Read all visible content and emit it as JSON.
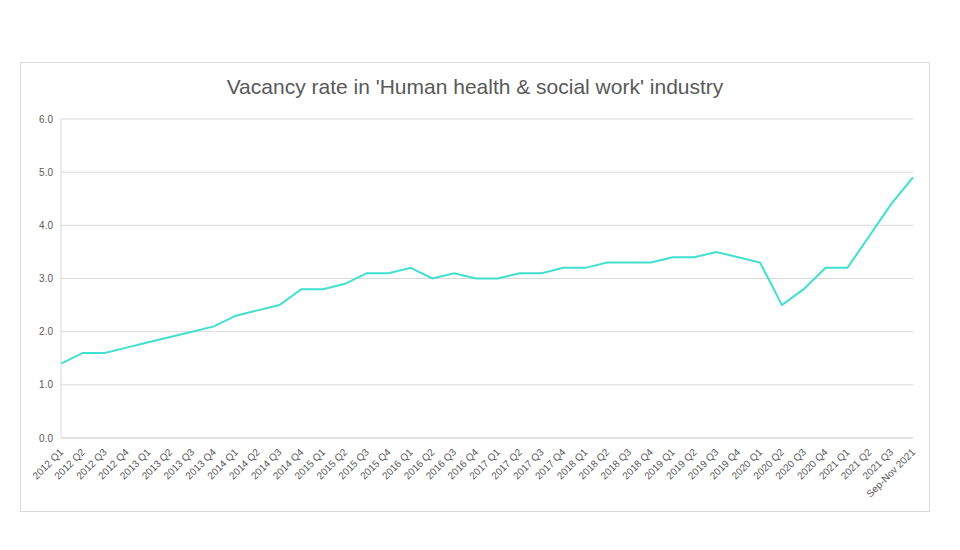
{
  "chart_data": {
    "type": "line",
    "title": "Vacancy rate in 'Human health & social work' industry",
    "categories": [
      "2012 Q1",
      "2012 Q2",
      "2012 Q3",
      "2012 Q4",
      "2013 Q1",
      "2013 Q2",
      "2013 Q3",
      "2013 Q4",
      "2014 Q1",
      "2014 Q2",
      "2014 Q3",
      "2014 Q4",
      "2015 Q1",
      "2015 Q2",
      "2015 Q3",
      "2015 Q4",
      "2016 Q1",
      "2016 Q2",
      "2016 Q3",
      "2016 Q4",
      "2017 Q1",
      "2017 Q2",
      "2017 Q3",
      "2017 Q4",
      "2018 Q1",
      "2018 Q2",
      "2018 Q3",
      "2018 Q4",
      "2019 Q1",
      "2019 Q2",
      "2019 Q3",
      "2019 Q4",
      "2020 Q1",
      "2020 Q2",
      "2020 Q3",
      "2020 Q4",
      "2021 Q1",
      "2021 Q2",
      "2021 Q3",
      "Sep-Nov 2021"
    ],
    "values": [
      1.4,
      1.6,
      1.6,
      1.7,
      1.8,
      1.9,
      2.0,
      2.1,
      2.3,
      2.4,
      2.5,
      2.8,
      2.8,
      2.9,
      3.1,
      3.1,
      3.2,
      3.0,
      3.1,
      3.0,
      3.0,
      3.1,
      3.1,
      3.2,
      3.2,
      3.3,
      3.3,
      3.3,
      3.4,
      3.4,
      3.5,
      3.4,
      3.3,
      2.5,
      2.8,
      3.2,
      3.2,
      3.8,
      4.4,
      4.9
    ],
    "color": "#40e0d0",
    "ylim": [
      0,
      6
    ],
    "yticks": [
      {
        "value": 0,
        "label": "0.0"
      },
      {
        "value": 1,
        "label": "1.0"
      },
      {
        "value": 2,
        "label": "2.0"
      },
      {
        "value": 3,
        "label": "3.0"
      },
      {
        "value": 4,
        "label": "4.0"
      },
      {
        "value": 5,
        "label": "5.0"
      },
      {
        "value": 6,
        "label": "6.0"
      }
    ],
    "grid": true
  }
}
